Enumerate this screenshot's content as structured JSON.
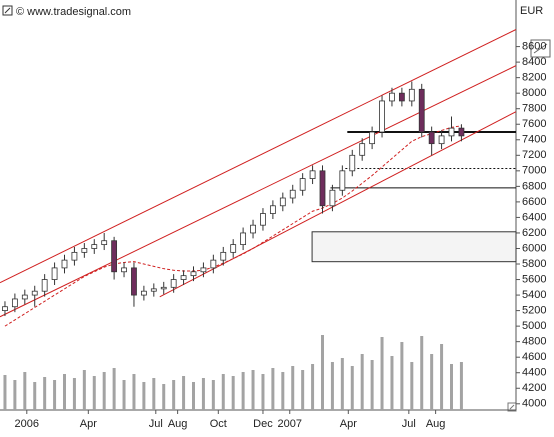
{
  "chart_data": {
    "type": "candlestick",
    "source": "© www.tradesignal.com",
    "y_label": "EUR",
    "xlim": [
      -0.5,
      51.5
    ],
    "ylim": [
      3920,
      9200
    ],
    "xticks": [
      {
        "value": 2.2,
        "label": "2006"
      },
      {
        "value": 8.4,
        "label": "Apr"
      },
      {
        "value": 15.2,
        "label": "Jul"
      },
      {
        "value": 17.4,
        "label": "Aug"
      },
      {
        "value": 21.5,
        "label": "Oct"
      },
      {
        "value": 26,
        "label": "Dec"
      },
      {
        "value": 28.7,
        "label": "2007"
      },
      {
        "value": 34.6,
        "label": "Apr"
      },
      {
        "value": 40.7,
        "label": "Jul"
      },
      {
        "value": 43.4,
        "label": "Aug"
      }
    ],
    "yticks": [
      4000,
      4200,
      4400,
      4600,
      4800,
      5000,
      5200,
      5400,
      5600,
      5800,
      6000,
      6200,
      6400,
      6600,
      6800,
      7000,
      7200,
      7400,
      7600,
      7800,
      8000,
      8200,
      8400,
      8600
    ],
    "up_color": "#ffffff",
    "down_color": "#6e2d5c",
    "volume_color": "#a3a3a3",
    "open": [
      5200,
      5250,
      5350,
      5400,
      5450,
      5600,
      5750,
      5850,
      5950,
      6000,
      6050,
      6100,
      5700,
      5750,
      5400,
      5450,
      5480,
      5500,
      5600,
      5650,
      5700,
      5750,
      5850,
      5950,
      6050,
      6200,
      6300,
      6450,
      6550,
      6650,
      6750,
      6900,
      7000,
      6550,
      6750,
      7000,
      7200,
      7350,
      7500,
      7900,
      8000,
      7900,
      8050,
      7500,
      7350,
      7450,
      7550
    ],
    "high": [
      5320,
      5420,
      5470,
      5520,
      5670,
      5820,
      5920,
      6020,
      6070,
      6120,
      6200,
      6150,
      5820,
      5820,
      5520,
      5550,
      5570,
      5670,
      5720,
      5770,
      5820,
      5920,
      6020,
      6120,
      6270,
      6370,
      6520,
      6620,
      6720,
      6820,
      6970,
      7070,
      7070,
      6820,
      7070,
      7270,
      7420,
      7570,
      7970,
      8070,
      8070,
      8150,
      8120,
      7570,
      7520,
      7700,
      7600
    ],
    "low": [
      5130,
      5180,
      5280,
      5250,
      5380,
      5530,
      5680,
      5780,
      5880,
      5930,
      5980,
      5600,
      5630,
      5250,
      5330,
      5380,
      5410,
      5430,
      5530,
      5580,
      5630,
      5680,
      5780,
      5880,
      5980,
      6130,
      6230,
      6380,
      6480,
      6580,
      6680,
      6830,
      6450,
      6480,
      6680,
      6930,
      7130,
      7280,
      7430,
      7830,
      7830,
      7830,
      7430,
      7200,
      7280,
      7380,
      7380
    ],
    "close": [
      5250,
      5350,
      5400,
      5450,
      5600,
      5750,
      5850,
      5950,
      6000,
      6050,
      6100,
      5700,
      5750,
      5400,
      5450,
      5480,
      5500,
      5600,
      5650,
      5700,
      5750,
      5850,
      5950,
      6050,
      6200,
      6300,
      6450,
      6550,
      6650,
      6750,
      6900,
      7000,
      6550,
      6750,
      7000,
      7200,
      7350,
      7500,
      7900,
      8000,
      7900,
      8050,
      7500,
      7350,
      7450,
      7550,
      7450
    ],
    "volume": [
      35,
      30,
      38,
      28,
      33,
      30,
      36,
      32,
      40,
      34,
      38,
      42,
      30,
      36,
      28,
      32,
      26,
      30,
      34,
      28,
      32,
      30,
      36,
      34,
      38,
      40,
      36,
      42,
      38,
      44,
      40,
      46,
      75,
      48,
      52,
      44,
      56,
      50,
      73,
      54,
      68,
      48,
      74,
      56,
      66,
      46,
      48
    ],
    "moving_average": {
      "color": "#d02020",
      "values": [
        5000,
        5080,
        5160,
        5240,
        5320,
        5400,
        5480,
        5560,
        5640,
        5700,
        5760,
        5800,
        5820,
        5830,
        5800,
        5770,
        5740,
        5720,
        5710,
        5710,
        5720,
        5760,
        5810,
        5870,
        5930,
        6000,
        6080,
        6160,
        6240,
        6320,
        6400,
        6480,
        6520,
        6580,
        6650,
        6740,
        6840,
        6940,
        7050,
        7160,
        7270,
        7380,
        7440,
        7480,
        7520,
        7560,
        7580
      ]
    },
    "trendlines": [
      {
        "color": "#d02020",
        "x": [
          -0.5,
          51.5
        ],
        "y": [
          5560,
          8820
        ]
      },
      {
        "color": "#d02020",
        "x": [
          -0.5,
          51.5
        ],
        "y": [
          5121,
          8355
        ]
      },
      {
        "color": "#d02020",
        "x": [
          15.6,
          51.5
        ],
        "y": [
          5378,
          7762
        ]
      }
    ],
    "levels": [
      {
        "value": 7500,
        "x_start": 34.5,
        "style": "thick"
      },
      {
        "value": 7030,
        "x_start": 34.3,
        "style": "dotted"
      },
      {
        "value": 6780,
        "x_start": 32.8,
        "style": "thin"
      }
    ],
    "zone": {
      "y": [
        5830,
        6215
      ],
      "x_start": 30.95
    }
  }
}
